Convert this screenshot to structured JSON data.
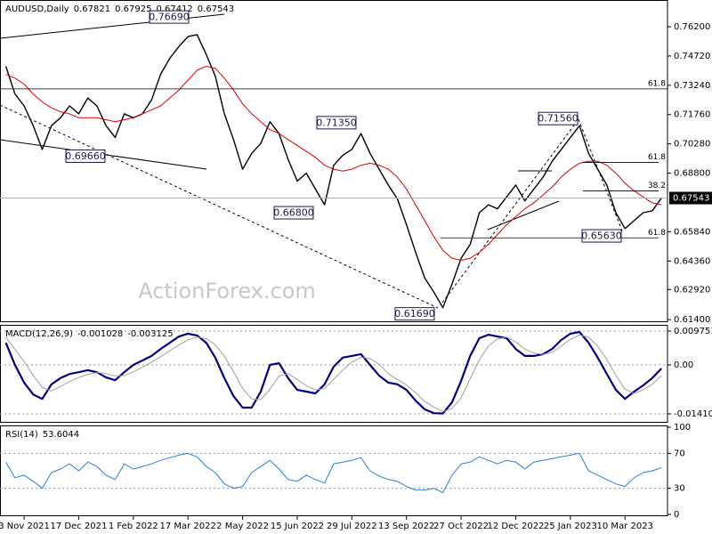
{
  "chart_data": [
    {
      "type": "line",
      "title": "AUDUSD,Daily",
      "ohlc": [
        0.67821,
        0.67925,
        0.67412,
        0.67543
      ],
      "categories": [
        null,
        null,
        "3 Nov 2021",
        null,
        null,
        null,
        null,
        null,
        "17 Dec 2021",
        null,
        null,
        null,
        null,
        null,
        "1 Feb 2022",
        null,
        null,
        null,
        null,
        null,
        "17 Mar 2022",
        null,
        null,
        null,
        null,
        null,
        "2 May 2022",
        null,
        null,
        null,
        null,
        null,
        "15 Jun 2022",
        null,
        null,
        null,
        null,
        null,
        "29 Jul 2022",
        null,
        null,
        null,
        null,
        null,
        "13 Sep 2022",
        null,
        null,
        null,
        null,
        null,
        "27 Oct 2022",
        null,
        null,
        null,
        null,
        null,
        "12 Dec 2022",
        null,
        null,
        null,
        null,
        null,
        "25 Jan 2023",
        null,
        null,
        null,
        null,
        null,
        "10 Mar 2023",
        null,
        null,
        null,
        null
      ],
      "series": [
        {
          "color": "#000000",
          "values": [
            0.742,
            0.728,
            0.722,
            0.712,
            0.7,
            0.712,
            0.716,
            0.722,
            0.718,
            0.726,
            0.722,
            0.712,
            0.706,
            0.718,
            0.716,
            0.718,
            0.725,
            0.738,
            0.746,
            0.752,
            0.757,
            0.758,
            0.748,
            0.737,
            0.718,
            0.705,
            0.69,
            0.698,
            0.703,
            0.714,
            0.708,
            0.695,
            0.684,
            0.688,
            0.68,
            0.672,
            0.692,
            0.697,
            0.7,
            0.708,
            0.698,
            0.69,
            0.682,
            0.675,
            0.662,
            0.648,
            0.635,
            0.628,
            0.62,
            0.632,
            0.645,
            0.652,
            0.668,
            0.672,
            0.67,
            0.676,
            0.682,
            0.674,
            0.68,
            0.686,
            0.694,
            0.7,
            0.706,
            0.712,
            0.698,
            0.69,
            0.682,
            0.668,
            0.66,
            0.664,
            0.668,
            0.669,
            0.67543
          ]
        },
        {
          "color": "#e00000",
          "values": [
            0.738,
            0.736,
            0.733,
            0.728,
            0.724,
            0.721,
            0.719,
            0.718,
            0.716,
            0.716,
            0.716,
            0.715,
            0.714,
            0.715,
            0.716,
            0.718,
            0.72,
            0.722,
            0.726,
            0.73,
            0.735,
            0.74,
            0.742,
            0.741,
            0.736,
            0.73,
            0.723,
            0.718,
            0.714,
            0.71,
            0.708,
            0.705,
            0.702,
            0.699,
            0.696,
            0.692,
            0.69,
            0.689,
            0.69,
            0.692,
            0.693,
            0.692,
            0.69,
            0.686,
            0.68,
            0.672,
            0.664,
            0.656,
            0.649,
            0.645,
            0.644,
            0.645,
            0.648,
            0.652,
            0.657,
            0.662,
            0.666,
            0.67,
            0.673,
            0.677,
            0.681,
            0.686,
            0.69,
            0.693,
            0.694,
            0.694,
            0.692,
            0.688,
            0.683,
            0.679,
            0.676,
            0.673,
            0.672
          ]
        }
      ],
      "ylim": [
        0.6127,
        0.7755
      ],
      "yticks": [
        {
          "value": 0.762,
          "label": "0.76200"
        },
        {
          "value": 0.7472,
          "label": "0.74720"
        },
        {
          "value": 0.7324,
          "label": "0.73240"
        },
        {
          "value": 0.7176,
          "label": "0.71760"
        },
        {
          "value": 0.7028,
          "label": "0.70280"
        },
        {
          "value": 0.688,
          "label": "0.68800"
        },
        {
          "value": 0.6584,
          "label": "0.65840"
        },
        {
          "value": 0.6436,
          "label": "0.64360"
        },
        {
          "value": 0.6292,
          "label": "0.62920"
        },
        {
          "value": 0.614,
          "label": "0.61400"
        }
      ],
      "current_price": {
        "value": 0.67543,
        "label": "0.67543"
      },
      "price_labels": [
        {
          "value": 0.7669,
          "label": "0.76690"
        },
        {
          "value": 0.6966,
          "label": "0.69660"
        },
        {
          "value": 0.7135,
          "label": "0.71350"
        },
        {
          "value": 0.668,
          "label": "0.66800"
        },
        {
          "value": 0.6169,
          "label": "0.61690"
        },
        {
          "value": 0.7156,
          "label": "0.71560"
        },
        {
          "value": 0.6563,
          "label": "0.65630"
        }
      ],
      "fib_levels": [
        {
          "ratio": 61.8,
          "price": 0.7306
        },
        {
          "ratio": 61.8,
          "price": 0.6934
        },
        {
          "ratio": 38.2,
          "price": 0.679
        },
        {
          "ratio": 61.8,
          "price": 0.6553
        }
      ],
      "watermark": "ActionForex.com"
    },
    {
      "type": "line",
      "title": "MACD(12,26,9)",
      "series": [
        {
          "color": "#000080",
          "values": [
            0.0064,
            0.0,
            -0.0051,
            -0.0085,
            -0.0098,
            -0.0056,
            -0.0038,
            -0.0026,
            -0.0021,
            -0.0015,
            -0.0021,
            -0.0036,
            -0.0044,
            -0.0021,
            0.0,
            0.0013,
            0.0026,
            0.0046,
            0.0064,
            0.0082,
            0.009,
            0.0085,
            0.0064,
            0.0021,
            -0.0038,
            -0.009,
            -0.0123,
            -0.0123,
            -0.0077,
            0.0,
            0.0005,
            -0.0038,
            -0.0072,
            -0.0077,
            -0.0082,
            -0.0056,
            -0.0005,
            0.0021,
            0.0026,
            0.0031,
            0.0,
            -0.0031,
            -0.0051,
            -0.0056,
            -0.0072,
            -0.0103,
            -0.0128,
            -0.0139,
            -0.014,
            -0.0108,
            -0.0046,
            0.0026,
            0.0077,
            0.0087,
            0.0082,
            0.0077,
            0.0046,
            0.0026,
            0.0026,
            0.0031,
            0.0046,
            0.0072,
            0.009,
            0.0095,
            0.0064,
            0.0021,
            -0.0026,
            -0.0072,
            -0.0098,
            -0.0077,
            -0.0059,
            -0.0038,
            -0.001028
          ]
        },
        {
          "color": "#a0a0a0",
          "values": [
            0.008,
            0.0045,
            0.001,
            -0.003,
            -0.0065,
            -0.0075,
            -0.0062,
            -0.0048,
            -0.0036,
            -0.0027,
            -0.0022,
            -0.0025,
            -0.0032,
            -0.0031,
            -0.002,
            -0.0006,
            0.0008,
            0.0024,
            0.0041,
            0.0058,
            0.0072,
            0.008,
            0.0076,
            0.0058,
            0.0025,
            -0.002,
            -0.0068,
            -0.0098,
            -0.01,
            -0.007,
            -0.0032,
            -0.0025,
            -0.0042,
            -0.006,
            -0.0072,
            -0.0068,
            -0.0042,
            -0.0015,
            0.0008,
            0.0022,
            0.0018,
            0.0002,
            -0.0025,
            -0.0042,
            -0.0058,
            -0.008,
            -0.0105,
            -0.0122,
            -0.0134,
            -0.0126,
            -0.0095,
            -0.004,
            0.0015,
            0.0055,
            0.0075,
            0.008,
            0.0066,
            0.0046,
            0.0034,
            0.003,
            0.0036,
            0.0054,
            0.0074,
            0.0086,
            0.008,
            0.0054,
            0.0016,
            -0.003,
            -0.007,
            -0.0082,
            -0.0072,
            -0.0056,
            -0.003125
          ]
        }
      ],
      "ylim": [
        -0.01667,
        0.01155
      ],
      "yticks": [
        0.009751,
        {
          "value": 0,
          "label": "0.00"
        },
        -0.014107
      ]
    },
    {
      "type": "line",
      "title": "RSI(14)",
      "series": [
        {
          "color": "#2a7fd4",
          "values": [
            60,
            42,
            45,
            38,
            30,
            48,
            52,
            58,
            50,
            60,
            55,
            45,
            40,
            58,
            52,
            55,
            58,
            62,
            65,
            68,
            70,
            66,
            55,
            48,
            35,
            30,
            32,
            48,
            55,
            62,
            52,
            40,
            38,
            45,
            40,
            36,
            58,
            60,
            62,
            65,
            50,
            44,
            40,
            38,
            32,
            28,
            28,
            30,
            25,
            45,
            58,
            60,
            66,
            62,
            58,
            62,
            60,
            52,
            60,
            62,
            64,
            66,
            68,
            70,
            50,
            45,
            40,
            35,
            32,
            42,
            48,
            50,
            53.6044
          ]
        }
      ],
      "ylim": [
        0,
        100
      ],
      "yticks": [
        100,
        70,
        30,
        0
      ]
    }
  ]
}
